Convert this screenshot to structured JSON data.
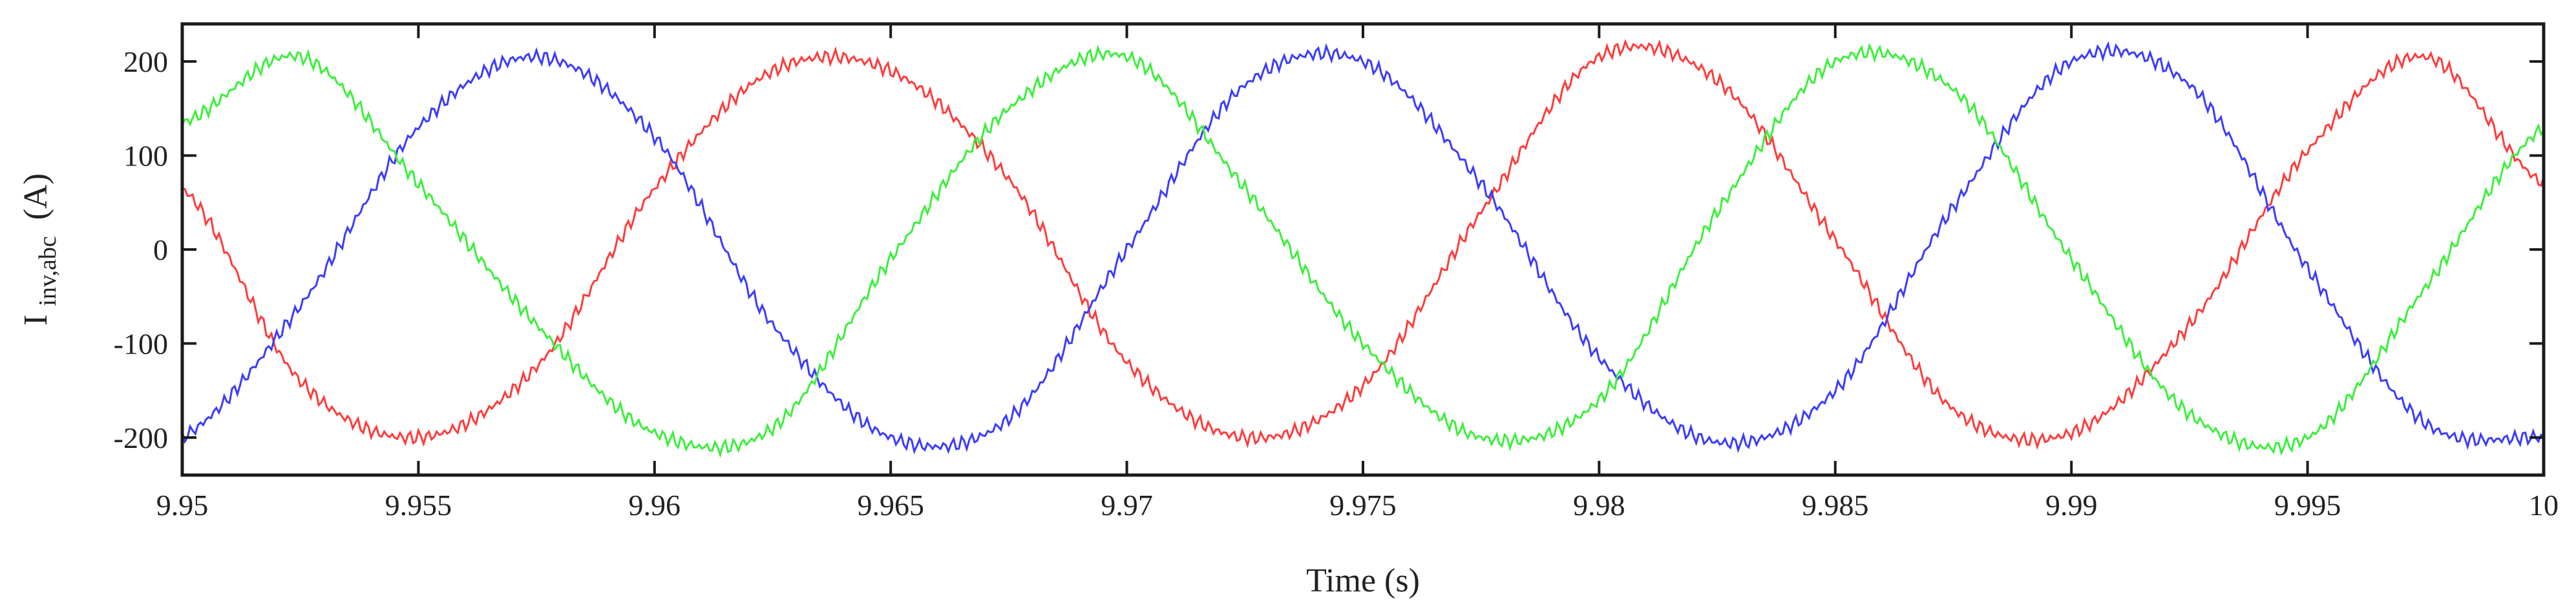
{
  "chart_data": {
    "type": "line",
    "title": "",
    "xlabel": "Time (s)",
    "ylabel": "I",
    "ylabel_subscript": "inv,abc",
    "ylabel_unit": "(A)",
    "xlim": [
      9.95,
      10.0
    ],
    "ylim": [
      -240,
      240
    ],
    "x_ticks": [
      9.95,
      9.955,
      9.96,
      9.965,
      9.97,
      9.975,
      9.98,
      9.985,
      9.99,
      9.995,
      10.0
    ],
    "x_tick_labels": [
      "9.95",
      "9.955",
      "9.96",
      "9.965",
      "9.97",
      "9.975",
      "9.98",
      "9.985",
      "9.99",
      "9.995",
      "10"
    ],
    "y_ticks": [
      -200,
      -100,
      0,
      100,
      200
    ],
    "y_tick_labels": [
      "-200",
      "-100",
      "0",
      "100",
      "200"
    ],
    "grid": false,
    "legend": "none",
    "series": [
      {
        "color": "#ff3b3b",
        "x": [
          9.95,
          9.9525,
          9.955,
          9.9575,
          9.96,
          9.9625,
          9.965,
          9.9675,
          9.97,
          9.9725,
          9.975,
          9.9775,
          9.98,
          9.9825,
          9.985,
          9.9875,
          9.99,
          9.9925,
          9.995,
          9.9975,
          10.0
        ],
        "y": [
          65,
          -140,
          -200,
          -125,
          65,
          190,
          190,
          75,
          -120,
          -200,
          -145,
          40,
          205,
          180,
          10,
          -170,
          -195,
          -80,
          105,
          205,
          70
        ]
      },
      {
        "color": "#3b3bff",
        "x": [
          9.95,
          9.9525,
          9.955,
          9.9575,
          9.96,
          9.9625,
          9.965,
          9.9675,
          9.97,
          9.9725,
          9.975,
          9.9775,
          9.98,
          9.9825,
          9.985,
          9.9875,
          9.99,
          9.9925,
          9.995,
          9.9975,
          10.0
        ],
        "y": [
          -200,
          -60,
          130,
          205,
          120,
          -80,
          -200,
          -180,
          0,
          175,
          200,
          70,
          -115,
          -205,
          -150,
          45,
          200,
          175,
          -20,
          -185,
          -200
        ]
      },
      {
        "color": "#3bef3b",
        "x": [
          9.95,
          9.9525,
          9.955,
          9.9575,
          9.96,
          9.9625,
          9.965,
          9.9675,
          9.97,
          9.9725,
          9.975,
          9.9775,
          9.98,
          9.9825,
          9.985,
          9.9875,
          9.99,
          9.9925,
          9.995,
          9.9975,
          10.0
        ],
        "y": [
          135,
          205,
          70,
          -80,
          -195,
          -190,
          -10,
          150,
          205,
          65,
          -100,
          -200,
          -160,
          40,
          200,
          170,
          -10,
          -175,
          -200,
          -40,
          130
        ]
      }
    ]
  }
}
